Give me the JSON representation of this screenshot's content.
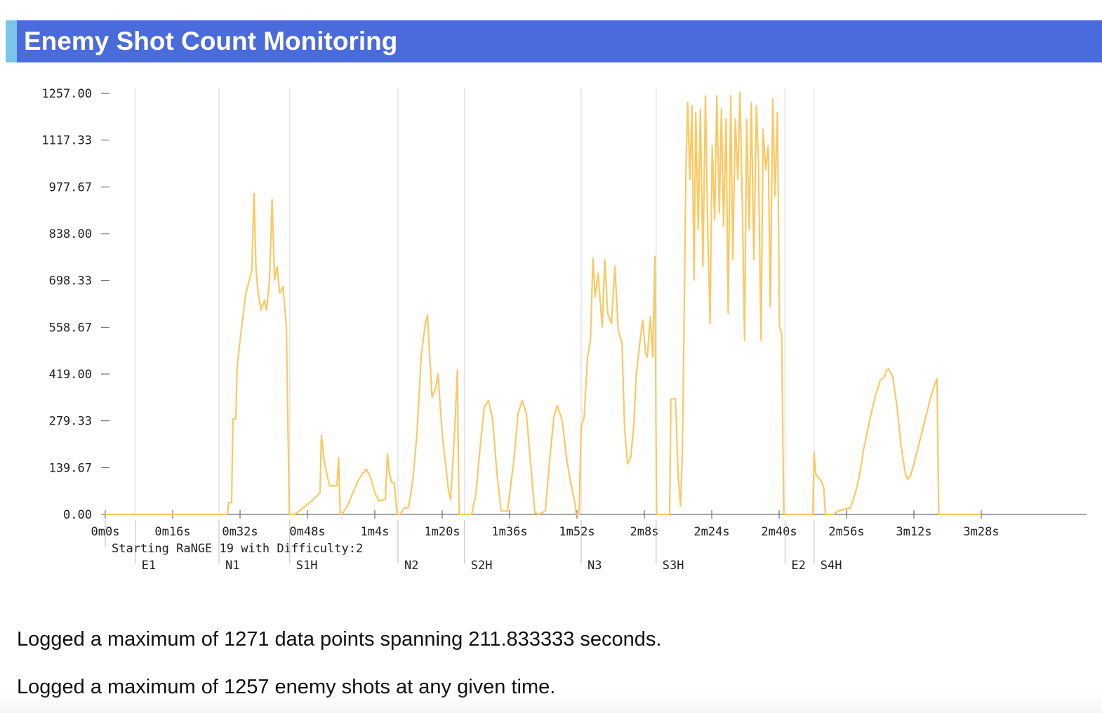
{
  "header": {
    "title": "Enemy Shot Count Monitoring"
  },
  "colors": {
    "header_bg": "#4a6bdb",
    "header_accent": "#7cc5ea",
    "line": "#fcc862",
    "marker_line": "#e4e4e4"
  },
  "chart_data": {
    "type": "line",
    "title": "",
    "xlabel": "",
    "ylabel": "",
    "xlim": [
      0,
      232
    ],
    "ylim": [
      0,
      1257
    ],
    "grid": false,
    "y_ticks": [
      "1257.00",
      "1117.33",
      "977.67",
      "838.00",
      "698.33",
      "558.67",
      "419.00",
      "279.33",
      "139.67",
      "0.00"
    ],
    "y_tick_values": [
      1257,
      1117.33,
      977.67,
      838,
      698.33,
      558.67,
      419,
      279.33,
      139.67,
      0
    ],
    "x_ticks": [
      "0m0s",
      "0m16s",
      "0m32s",
      "0m48s",
      "1m4s",
      "1m20s",
      "1m36s",
      "1m52s",
      "2m8s",
      "2m24s",
      "2m40s",
      "2m56s",
      "3m12s",
      "3m28s"
    ],
    "x_tick_values": [
      0,
      16,
      32,
      48,
      64,
      80,
      96,
      112,
      128,
      144,
      160,
      176,
      192,
      208
    ],
    "markers": [
      {
        "label": "Starting RaNGE 19 with Difficulty:2",
        "t": 0,
        "row": 1
      },
      {
        "label": "E1",
        "t": 7.1,
        "row": 2
      },
      {
        "label": "N1",
        "t": 27.0,
        "row": 2
      },
      {
        "label": "S1H",
        "t": 43.8,
        "row": 2
      },
      {
        "label": "N2",
        "t": 69.5,
        "row": 2
      },
      {
        "label": "S2H",
        "t": 85.3,
        "row": 2
      },
      {
        "label": "N3",
        "t": 113.0,
        "row": 2
      },
      {
        "label": "S3H",
        "t": 130.8,
        "row": 2
      },
      {
        "label": "E2",
        "t": 161.4,
        "row": 2
      },
      {
        "label": "S4H",
        "t": 168.3,
        "row": 2
      }
    ],
    "series": [
      {
        "values": [
          [
            0,
            0
          ],
          [
            16,
            0
          ],
          [
            29,
            0
          ],
          [
            29.3,
            35
          ],
          [
            30,
            35
          ],
          [
            30.3,
            285
          ],
          [
            31,
            285
          ],
          [
            31.3,
            440
          ],
          [
            32,
            520
          ],
          [
            32.8,
            600
          ],
          [
            33.3,
            655
          ],
          [
            34,
            690
          ],
          [
            34.8,
            730
          ],
          [
            35.3,
            958
          ],
          [
            35.8,
            730
          ],
          [
            36.3,
            660
          ],
          [
            37,
            610
          ],
          [
            37.8,
            640
          ],
          [
            38.3,
            610
          ],
          [
            39,
            700
          ],
          [
            39.6,
            940
          ],
          [
            40.2,
            700
          ],
          [
            40.8,
            740
          ],
          [
            41.4,
            660
          ],
          [
            42.2,
            680
          ],
          [
            43,
            560
          ],
          [
            43.7,
            0
          ],
          [
            44.6,
            0
          ],
          [
            45,
            0
          ],
          [
            47,
            20
          ],
          [
            49,
            40
          ],
          [
            51,
            65
          ],
          [
            51.3,
            235
          ],
          [
            52,
            160
          ],
          [
            52.8,
            110
          ],
          [
            53.3,
            85
          ],
          [
            55,
            85
          ],
          [
            55.4,
            170
          ],
          [
            55.8,
            0
          ],
          [
            56.2,
            0
          ],
          [
            57.7,
            30
          ],
          [
            58.8,
            65
          ],
          [
            60,
            100
          ],
          [
            61,
            120
          ],
          [
            62,
            135
          ],
          [
            63,
            110
          ],
          [
            64,
            65
          ],
          [
            65,
            40
          ],
          [
            66.5,
            45
          ],
          [
            67,
            180
          ],
          [
            67.5,
            120
          ],
          [
            68,
            95
          ],
          [
            68.6,
            95
          ],
          [
            69.3,
            0
          ],
          [
            70,
            0
          ],
          [
            71,
            20
          ],
          [
            72,
            20
          ],
          [
            73,
            100
          ],
          [
            74,
            240
          ],
          [
            75,
            470
          ],
          [
            76,
            570
          ],
          [
            76.5,
            595
          ],
          [
            77,
            480
          ],
          [
            77.6,
            350
          ],
          [
            78.5,
            380
          ],
          [
            79,
            420
          ],
          [
            80,
            240
          ],
          [
            81.5,
            70
          ],
          [
            82,
            45
          ],
          [
            83,
            260
          ],
          [
            83.6,
            430
          ],
          [
            84,
            0
          ],
          [
            87,
            0
          ],
          [
            88,
            60
          ],
          [
            89,
            200
          ],
          [
            90,
            320
          ],
          [
            91,
            340
          ],
          [
            92,
            280
          ],
          [
            93,
            120
          ],
          [
            94,
            10
          ],
          [
            95.5,
            10
          ],
          [
            97,
            160
          ],
          [
            98,
            300
          ],
          [
            99,
            340
          ],
          [
            100,
            300
          ],
          [
            101,
            150
          ],
          [
            102,
            5
          ],
          [
            103,
            0
          ],
          [
            104.5,
            10
          ],
          [
            105.5,
            160
          ],
          [
            106.5,
            290
          ],
          [
            107.3,
            325
          ],
          [
            108.5,
            280
          ],
          [
            109.5,
            170
          ],
          [
            110.5,
            95
          ],
          [
            111.6,
            30
          ],
          [
            111.8,
            0
          ],
          [
            112.5,
            0
          ],
          [
            113,
            260
          ],
          [
            113.7,
            290
          ],
          [
            114.5,
            470
          ],
          [
            115.2,
            520
          ],
          [
            115.8,
            765
          ],
          [
            116.3,
            650
          ],
          [
            117,
            720
          ],
          [
            118,
            560
          ],
          [
            118.6,
            760
          ],
          [
            119.3,
            600
          ],
          [
            120.2,
            570
          ],
          [
            121,
            740
          ],
          [
            121.8,
            550
          ],
          [
            122.7,
            510
          ],
          [
            123.3,
            260
          ],
          [
            124,
            150
          ],
          [
            124.8,
            170
          ],
          [
            125.5,
            270
          ],
          [
            126.1,
            420
          ],
          [
            127,
            520
          ],
          [
            127.6,
            580
          ],
          [
            128.3,
            480
          ],
          [
            128.7,
            470
          ],
          [
            129.4,
            590
          ],
          [
            130,
            470
          ],
          [
            130.5,
            770
          ],
          [
            130.9,
            0
          ],
          [
            134,
            0
          ],
          [
            134.3,
            345
          ],
          [
            135.4,
            345
          ],
          [
            136,
            120
          ],
          [
            136.6,
            25
          ],
          [
            137,
            170
          ],
          [
            137.4,
            540
          ],
          [
            137.9,
            1050
          ],
          [
            138.3,
            1230
          ],
          [
            138.8,
            1000
          ],
          [
            139.3,
            1220
          ],
          [
            139.8,
            700
          ],
          [
            140.2,
            1200
          ],
          [
            140.8,
            850
          ],
          [
            141.3,
            1210
          ],
          [
            141.9,
            740
          ],
          [
            142.5,
            1250
          ],
          [
            143.1,
            820
          ],
          [
            143.6,
            570
          ],
          [
            144.1,
            1100
          ],
          [
            144.7,
            880
          ],
          [
            145.2,
            1250
          ],
          [
            145.8,
            900
          ],
          [
            146.3,
            1210
          ],
          [
            146.8,
            860
          ],
          [
            147.4,
            1180
          ],
          [
            147.9,
            600
          ],
          [
            148.5,
            1250
          ],
          [
            149,
            760
          ],
          [
            149.6,
            1180
          ],
          [
            150.2,
            1000
          ],
          [
            150.7,
            1260
          ],
          [
            151.3,
            900
          ],
          [
            151.8,
            520
          ],
          [
            152.3,
            1180
          ],
          [
            152.9,
            850
          ],
          [
            153.4,
            1230
          ],
          [
            154,
            760
          ],
          [
            154.6,
            1220
          ],
          [
            155.1,
            1050
          ],
          [
            155.7,
            520
          ],
          [
            156.2,
            1150
          ],
          [
            156.8,
            1030
          ],
          [
            157.4,
            1100
          ],
          [
            157.9,
            620
          ],
          [
            158.5,
            1240
          ],
          [
            159,
            950
          ],
          [
            159.6,
            1200
          ],
          [
            160.1,
            560
          ],
          [
            160.6,
            540
          ],
          [
            161.1,
            0
          ],
          [
            168,
            0
          ],
          [
            168.3,
            185
          ],
          [
            168.7,
            120
          ],
          [
            169.3,
            110
          ],
          [
            170,
            100
          ],
          [
            170.6,
            80
          ],
          [
            171,
            0
          ],
          [
            173,
            0
          ],
          [
            174,
            10
          ],
          [
            175.5,
            15
          ],
          [
            177,
            20
          ],
          [
            178,
            60
          ],
          [
            179,
            110
          ],
          [
            180,
            190
          ],
          [
            181,
            250
          ],
          [
            182,
            310
          ],
          [
            183,
            360
          ],
          [
            184,
            400
          ],
          [
            185,
            410
          ],
          [
            185.5,
            430
          ],
          [
            186,
            435
          ],
          [
            187,
            410
          ],
          [
            188,
            320
          ],
          [
            189,
            200
          ],
          [
            190,
            120
          ],
          [
            190.6,
            105
          ],
          [
            191.2,
            115
          ],
          [
            192,
            150
          ],
          [
            193,
            200
          ],
          [
            194,
            250
          ],
          [
            195,
            300
          ],
          [
            196,
            350
          ],
          [
            197,
            390
          ],
          [
            197.5,
            405
          ],
          [
            197.9,
            0
          ],
          [
            208,
            0
          ]
        ]
      }
    ]
  },
  "summary": {
    "line1": "Logged a maximum of 1271 data points spanning 211.833333 seconds.",
    "line2": "Logged a maximum of 1257 enemy shots at any given time."
  }
}
